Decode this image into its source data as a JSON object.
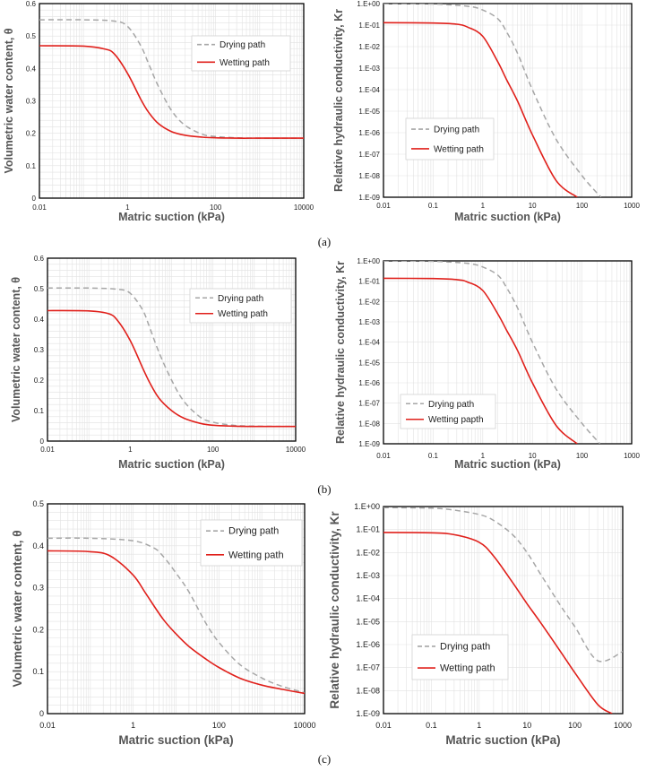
{
  "figure": {
    "captions": [
      "(a)",
      "(b)",
      "(c)"
    ],
    "colors": {
      "drying": "#a6a6a6",
      "wetting": "#e0201b",
      "grid": "#e2e2e2",
      "axis": "#000000"
    }
  },
  "chart_data": [
    {
      "id": "a-swcc",
      "type": "line",
      "panel": "a",
      "xscale": "log",
      "xlim": [
        0.01,
        10000
      ],
      "xticks": [
        {
          "v": 0.01,
          "label": "0.01"
        },
        {
          "v": 1,
          "label": "1"
        },
        {
          "v": 100,
          "label": "100"
        },
        {
          "v": 10000,
          "label": "10000"
        }
      ],
      "yscale": "linear",
      "ylim": [
        0,
        0.6
      ],
      "yticks": [
        {
          "v": 0,
          "label": "0"
        },
        {
          "v": 0.1,
          "label": "0.1"
        },
        {
          "v": 0.2,
          "label": "0.2"
        },
        {
          "v": 0.3,
          "label": "0.3"
        },
        {
          "v": 0.4,
          "label": "0.4"
        },
        {
          "v": 0.5,
          "label": "0.5"
        },
        {
          "v": 0.6,
          "label": "0.6"
        }
      ],
      "xlabel": "Matric suction (kPa)",
      "ylabel": "Volumetric water content, θ",
      "legend_position": "top-right",
      "series": [
        {
          "name": "Drying path",
          "style": "dashed",
          "x": [
            0.01,
            0.1,
            0.5,
            1,
            2,
            3,
            5,
            10,
            20,
            50,
            100,
            300,
            1000,
            10000
          ],
          "y": [
            0.55,
            0.55,
            0.546,
            0.53,
            0.47,
            0.415,
            0.345,
            0.27,
            0.225,
            0.197,
            0.19,
            0.186,
            0.185,
            0.185
          ]
        },
        {
          "name": "Wetting path",
          "style": "solid",
          "x": [
            0.01,
            0.1,
            0.3,
            0.5,
            1,
            2,
            3,
            5,
            10,
            20,
            50,
            100,
            300,
            1000,
            10000
          ],
          "y": [
            0.47,
            0.469,
            0.46,
            0.445,
            0.385,
            0.305,
            0.265,
            0.23,
            0.205,
            0.194,
            0.188,
            0.186,
            0.185,
            0.185,
            0.185
          ]
        }
      ]
    },
    {
      "id": "a-kr",
      "type": "line",
      "panel": "a",
      "xscale": "log",
      "xlim": [
        0.01,
        1000
      ],
      "xticks": [
        {
          "v": 0.01,
          "label": "0.01"
        },
        {
          "v": 0.1,
          "label": "0.1"
        },
        {
          "v": 1,
          "label": "1"
        },
        {
          "v": 10,
          "label": "10"
        },
        {
          "v": 100,
          "label": "100"
        },
        {
          "v": 1000,
          "label": "1000"
        }
      ],
      "yscale": "log",
      "ylim": [
        1e-09,
        1
      ],
      "yticks": [
        {
          "v": 1,
          "label": "1.E+00"
        },
        {
          "v": 0.1,
          "label": "1.E-01"
        },
        {
          "v": 0.01,
          "label": "1.E-02"
        },
        {
          "v": 0.001,
          "label": "1.E-03"
        },
        {
          "v": 0.0001,
          "label": "1.E-04"
        },
        {
          "v": 1e-05,
          "label": "1.E-05"
        },
        {
          "v": 1e-06,
          "label": "1.E-06"
        },
        {
          "v": 1e-07,
          "label": "1.E-07"
        },
        {
          "v": 1e-08,
          "label": "1.E-08"
        },
        {
          "v": 1e-09,
          "label": "1.E-09"
        }
      ],
      "xlabel": "Matric suction (kPa)",
      "ylabel": "Relative hydraulic conductivity, Kr",
      "legend_position": "bottom-left",
      "series": [
        {
          "name": "Drying path",
          "style": "dashed",
          "x": [
            0.01,
            0.1,
            0.5,
            1,
            2,
            3,
            5,
            10,
            30,
            100,
            240
          ],
          "y": [
            1,
            0.95,
            0.75,
            0.5,
            0.2,
            0.05,
            0.005,
            0.0001,
            5e-07,
            1e-08,
            1e-09
          ]
        },
        {
          "name": "Wetting path",
          "style": "solid",
          "x": [
            0.01,
            0.1,
            0.3,
            0.5,
            1,
            2,
            3,
            5,
            10,
            30,
            80
          ],
          "y": [
            0.13,
            0.125,
            0.11,
            0.08,
            0.03,
            0.002,
            0.0003,
            3e-05,
            8e-07,
            6e-09,
            1e-09
          ]
        }
      ]
    },
    {
      "id": "b-swcc",
      "type": "line",
      "panel": "b",
      "xscale": "log",
      "xlim": [
        0.01,
        10000
      ],
      "xticks": [
        {
          "v": 0.01,
          "label": "0.01"
        },
        {
          "v": 1,
          "label": "1"
        },
        {
          "v": 100,
          "label": "100"
        },
        {
          "v": 10000,
          "label": "10000"
        }
      ],
      "yscale": "linear",
      "ylim": [
        0,
        0.6
      ],
      "yticks": [
        {
          "v": 0,
          "label": "0"
        },
        {
          "v": 0.1,
          "label": "0.1"
        },
        {
          "v": 0.2,
          "label": "0.2"
        },
        {
          "v": 0.3,
          "label": "0.3"
        },
        {
          "v": 0.4,
          "label": "0.4"
        },
        {
          "v": 0.5,
          "label": "0.5"
        },
        {
          "v": 0.6,
          "label": "0.6"
        }
      ],
      "xlabel": "Matric suction (kPa)",
      "ylabel": "Volumetric water content, θ",
      "legend_position": "top-right",
      "series": [
        {
          "name": "Drying path",
          "style": "dashed",
          "x": [
            0.01,
            0.1,
            0.5,
            1,
            2,
            3,
            5,
            10,
            20,
            50,
            100,
            300,
            1000,
            10000
          ],
          "y": [
            0.502,
            0.502,
            0.498,
            0.485,
            0.43,
            0.37,
            0.29,
            0.2,
            0.13,
            0.078,
            0.062,
            0.052,
            0.049,
            0.048
          ]
        },
        {
          "name": "Wetting path",
          "style": "solid",
          "x": [
            0.01,
            0.1,
            0.3,
            0.5,
            1,
            2,
            3,
            5,
            10,
            20,
            50,
            100,
            300,
            1000,
            10000
          ],
          "y": [
            0.428,
            0.427,
            0.418,
            0.395,
            0.33,
            0.24,
            0.19,
            0.14,
            0.1,
            0.075,
            0.058,
            0.052,
            0.049,
            0.048,
            0.048
          ]
        }
      ]
    },
    {
      "id": "b-kr",
      "type": "line",
      "panel": "b",
      "xscale": "log",
      "xlim": [
        0.01,
        1000
      ],
      "xticks": [
        {
          "v": 0.01,
          "label": "0.01"
        },
        {
          "v": 0.1,
          "label": "0.1"
        },
        {
          "v": 1,
          "label": "1"
        },
        {
          "v": 10,
          "label": "10"
        },
        {
          "v": 100,
          "label": "100"
        },
        {
          "v": 1000,
          "label": "1000"
        }
      ],
      "yscale": "log",
      "ylim": [
        1e-09,
        1
      ],
      "yticks": [
        {
          "v": 1,
          "label": "1.E+00"
        },
        {
          "v": 0.1,
          "label": "1.E-01"
        },
        {
          "v": 0.01,
          "label": "1.E-02"
        },
        {
          "v": 0.001,
          "label": "1.E-03"
        },
        {
          "v": 0.0001,
          "label": "1.E-04"
        },
        {
          "v": 1e-05,
          "label": "1.E-05"
        },
        {
          "v": 1e-06,
          "label": "1.E-06"
        },
        {
          "v": 1e-07,
          "label": "1.E-07"
        },
        {
          "v": 1e-08,
          "label": "1.E-08"
        },
        {
          "v": 1e-09,
          "label": "1.E-09"
        }
      ],
      "xlabel": "Matric suction (kPa)",
      "ylabel": "Relative hydraulic conductivity, Kr",
      "legend_position": "bottom-left",
      "series": [
        {
          "name": "Drying path",
          "style": "dashed",
          "x": [
            0.01,
            0.1,
            0.5,
            1,
            2,
            3,
            5,
            10,
            30,
            100,
            230
          ],
          "y": [
            1,
            0.95,
            0.75,
            0.5,
            0.2,
            0.05,
            0.005,
            0.0001,
            5e-07,
            1e-08,
            1e-09
          ]
        },
        {
          "name": "Wetting papth",
          "style": "solid",
          "x": [
            0.01,
            0.1,
            0.3,
            0.5,
            1,
            2,
            3,
            5,
            10,
            30,
            80
          ],
          "y": [
            0.14,
            0.135,
            0.12,
            0.09,
            0.035,
            0.0025,
            0.0004,
            4e-05,
            1e-06,
            8e-09,
            1e-09
          ]
        }
      ]
    },
    {
      "id": "c-swcc",
      "type": "line",
      "panel": "c",
      "xscale": "log",
      "xlim": [
        0.01,
        10000
      ],
      "xticks": [
        {
          "v": 0.01,
          "label": "0.01"
        },
        {
          "v": 1,
          "label": "1"
        },
        {
          "v": 100,
          "label": "100"
        },
        {
          "v": 10000,
          "label": "10000"
        }
      ],
      "yscale": "linear",
      "ylim": [
        0,
        0.5
      ],
      "yticks": [
        {
          "v": 0,
          "label": "0"
        },
        {
          "v": 0.1,
          "label": "0.1"
        },
        {
          "v": 0.2,
          "label": "0.2"
        },
        {
          "v": 0.3,
          "label": "0.3"
        },
        {
          "v": 0.4,
          "label": "0.4"
        },
        {
          "v": 0.5,
          "label": "0.5"
        }
      ],
      "xlabel": "Matric suction (kPa)",
      "ylabel": "Volumetric water content, θ",
      "legend_position": "top-right",
      "series": [
        {
          "name": "Drying path",
          "style": "dashed",
          "x": [
            0.01,
            0.1,
            1,
            3,
            5,
            10,
            20,
            50,
            100,
            300,
            1000,
            3000,
            10000
          ],
          "y": [
            0.418,
            0.418,
            0.412,
            0.395,
            0.375,
            0.335,
            0.29,
            0.215,
            0.17,
            0.118,
            0.085,
            0.065,
            0.05
          ]
        },
        {
          "name": "Wetting path",
          "style": "solid",
          "x": [
            0.01,
            0.1,
            0.3,
            1,
            2,
            5,
            10,
            20,
            50,
            100,
            300,
            1000,
            3000,
            10000
          ],
          "y": [
            0.388,
            0.386,
            0.375,
            0.33,
            0.285,
            0.225,
            0.19,
            0.16,
            0.13,
            0.11,
            0.085,
            0.068,
            0.058,
            0.048
          ]
        }
      ]
    },
    {
      "id": "c-kr",
      "type": "line",
      "panel": "c",
      "xscale": "log",
      "xlim": [
        0.01,
        1000
      ],
      "xticks": [
        {
          "v": 0.01,
          "label": "0.01"
        },
        {
          "v": 0.1,
          "label": "0.1"
        },
        {
          "v": 1,
          "label": "1"
        },
        {
          "v": 10,
          "label": "10"
        },
        {
          "v": 100,
          "label": "100"
        },
        {
          "v": 1000,
          "label": "1000"
        }
      ],
      "yscale": "log",
      "ylim": [
        1e-09,
        1
      ],
      "yticks": [
        {
          "v": 1,
          "label": "1.E+00"
        },
        {
          "v": 0.1,
          "label": "1.E-01"
        },
        {
          "v": 0.01,
          "label": "1.E-02"
        },
        {
          "v": 0.001,
          "label": "1.E-03"
        },
        {
          "v": 0.0001,
          "label": "1.E-04"
        },
        {
          "v": 1e-05,
          "label": "1.E-05"
        },
        {
          "v": 1e-06,
          "label": "1.E-06"
        },
        {
          "v": 1e-07,
          "label": "1.E-07"
        },
        {
          "v": 1e-08,
          "label": "1.E-08"
        },
        {
          "v": 1e-09,
          "label": "1.E-09"
        }
      ],
      "xlabel": "Matric suction (kPa)",
      "ylabel": "Relative hydraulic conductivity, Kr",
      "legend_position": "bottom-left",
      "series": [
        {
          "name": "Drying path",
          "style": "dashed",
          "x": [
            0.01,
            0.1,
            0.3,
            1,
            2,
            5,
            10,
            20,
            50,
            100,
            300,
            1000
          ],
          "y": [
            0.9,
            0.85,
            0.7,
            0.45,
            0.25,
            0.06,
            0.01,
            0.001,
            5e-05,
            6e-06,
            2e-07,
            5e-07
          ]
        },
        {
          "name": "Wetting path",
          "style": "solid",
          "x": [
            0.01,
            0.1,
            0.3,
            1,
            2,
            5,
            10,
            20,
            50,
            100,
            300,
            600
          ],
          "y": [
            0.075,
            0.072,
            0.06,
            0.028,
            0.007,
            0.0005,
            6e-05,
            8e-06,
            5e-07,
            6e-08,
            2.5e-09,
            1e-09
          ]
        }
      ]
    }
  ]
}
